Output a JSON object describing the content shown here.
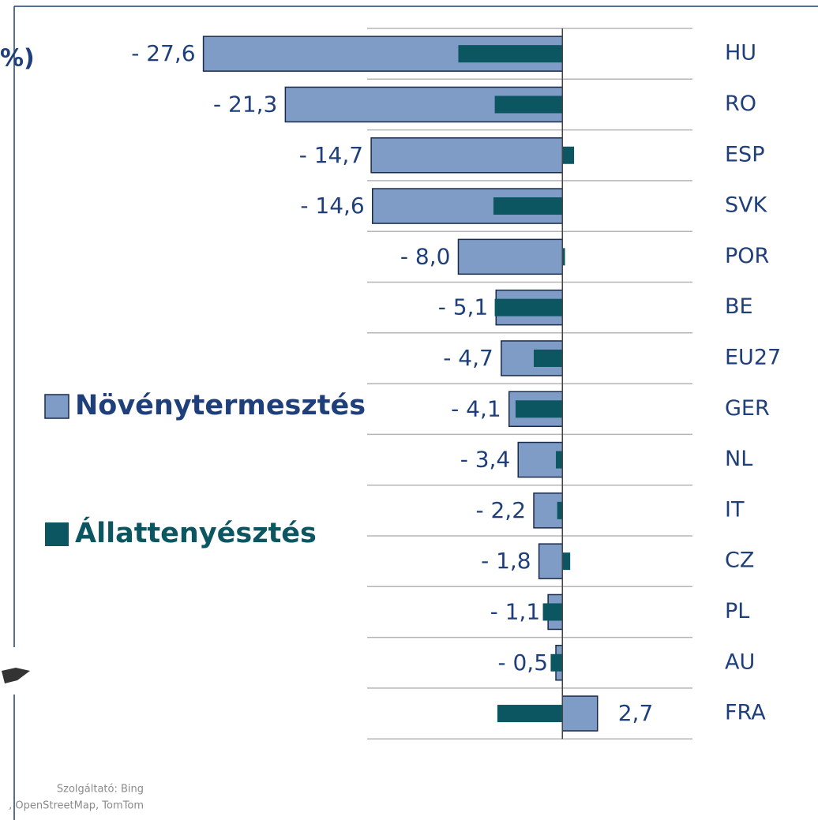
{
  "chart_data": {
    "type": "bar",
    "orientation": "horizontal",
    "categories": [
      "HU",
      "RO",
      "ESP",
      "SVK",
      "POR",
      "BE",
      "EU27",
      "GER",
      "NL",
      "IT",
      "CZ",
      "PL",
      "AU",
      "FRA"
    ],
    "series": [
      {
        "name": "Növénytermesztés",
        "color": "#7f9cc6",
        "values": [
          -27.6,
          -21.3,
          -14.7,
          -14.6,
          -8.0,
          -5.1,
          -4.7,
          -4.1,
          -3.4,
          -2.2,
          -1.8,
          -1.1,
          -0.5,
          2.7
        ],
        "value_labels": [
          "- 27,6",
          "- 21,3",
          "- 14,7",
          "- 14,6",
          "- 8,0",
          "- 5,1",
          "- 4,7",
          "- 4,1",
          "- 3,4",
          "- 2,2",
          "- 1,8",
          "- 1,1",
          "- 0,5",
          "2,7"
        ]
      },
      {
        "name": "Állattenyésztés",
        "color": "#0b5661",
        "values": [
          -8.0,
          -5.2,
          0.9,
          -5.3,
          0.2,
          -5.2,
          -2.2,
          -3.6,
          -0.5,
          -0.4,
          0.6,
          -1.5,
          -0.9,
          -5.0
        ]
      }
    ],
    "xlim": [
      -28,
      10
    ],
    "legend": "left",
    "annotations": [
      "%)",
      "Szolgáltató: Bing",
      ", OpenStreetMap, TomTom"
    ]
  }
}
